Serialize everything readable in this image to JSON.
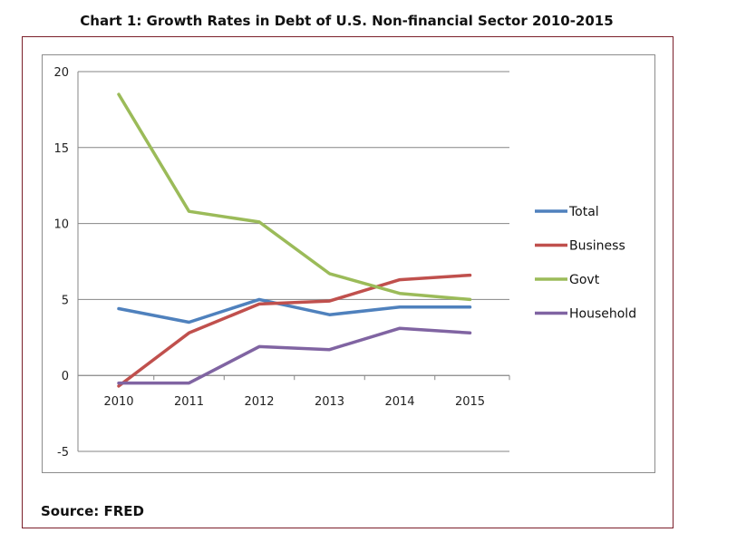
{
  "chart_data": {
    "type": "line",
    "title": "Chart 1: Growth Rates in Debt of U.S. Non-financial Sector 2010-2015",
    "source": "Source: FRED",
    "x": [
      "2010",
      "2011",
      "2012",
      "2013",
      "2014",
      "2015"
    ],
    "ylim": [
      -5,
      20
    ],
    "yticks": [
      -5,
      0,
      5,
      10,
      15,
      20
    ],
    "grid": true,
    "legend_position": "right",
    "series": [
      {
        "name": "Total",
        "color": "#4f81bd",
        "values": [
          4.4,
          3.5,
          5.0,
          4.0,
          4.5,
          4.5
        ]
      },
      {
        "name": "Business",
        "color": "#c0504d",
        "values": [
          -0.7,
          2.8,
          4.7,
          4.9,
          6.3,
          6.6
        ]
      },
      {
        "name": "Govt",
        "color": "#9bbb59",
        "values": [
          18.5,
          10.8,
          10.1,
          6.7,
          5.4,
          5.0
        ]
      },
      {
        "name": "Household",
        "color": "#8064a2",
        "values": [
          -0.5,
          -0.5,
          1.9,
          1.7,
          3.1,
          2.8
        ]
      }
    ]
  }
}
